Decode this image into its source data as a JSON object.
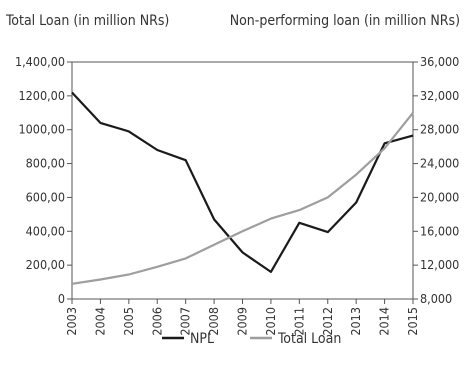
{
  "chart_data": {
    "type": "line",
    "left_axis_title": "Total Loan (in million NRs)",
    "right_axis_title": "Non-performing loan (in million NRs)",
    "categories": [
      "2003",
      "2004",
      "2005",
      "2006",
      "2007",
      "2008",
      "2009",
      "2010",
      "2011",
      "2012",
      "2013",
      "2014",
      "2015"
    ],
    "left_ticks": [
      "0",
      "200,00",
      "400,00",
      "600,00",
      "800,00",
      "1000,00",
      "1200,00",
      "1,400,00"
    ],
    "left_range": [
      0,
      1400
    ],
    "right_ticks": [
      "8,000",
      "12,000",
      "16,000",
      "20,000",
      "24,000",
      "28,000",
      "32,000",
      "36,000"
    ],
    "right_range": [
      8000,
      36000
    ],
    "series": [
      {
        "name": "NPL",
        "axis": "left",
        "color": "#1a1a1a",
        "values": [
          1220,
          1040,
          990,
          880,
          820,
          470,
          275,
          160,
          450,
          395,
          570,
          920,
          965
        ]
      },
      {
        "name": "Total Loan",
        "axis": "right",
        "color": "#9e9e9e",
        "values": [
          9800,
          10300,
          10900,
          11800,
          12800,
          14400,
          16000,
          17500,
          18500,
          20000,
          22700,
          25800,
          30000
        ]
      }
    ],
    "grid": false,
    "legend_position": "bottom"
  }
}
